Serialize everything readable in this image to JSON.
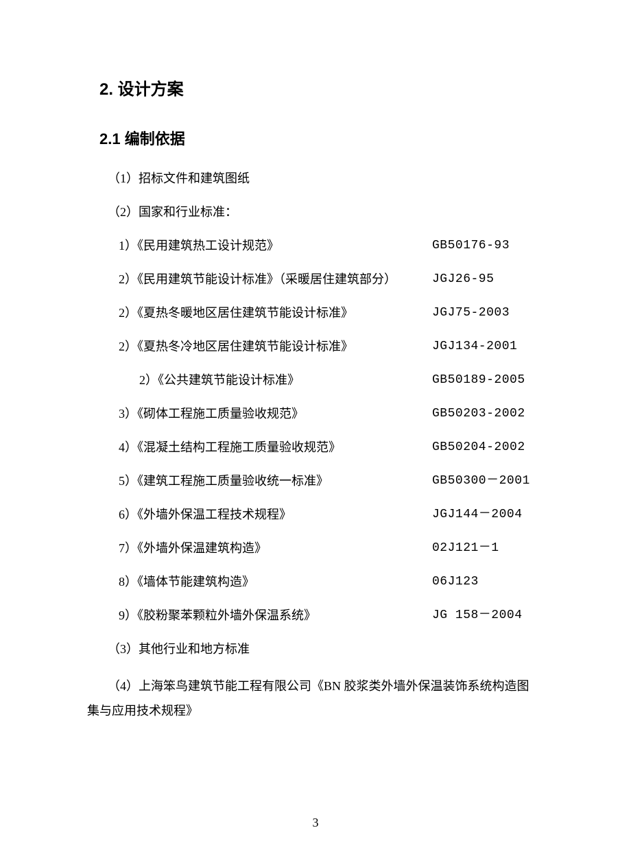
{
  "heading1": "2. 设计方案",
  "heading2": "2.1 编制依据",
  "item1": "（1）招标文件和建筑图纸",
  "item2": "（2）国家和行业标准：",
  "standards": [
    {
      "title": "1）《民用建筑热工设计规范》",
      "code": "GB50176-93",
      "indent": 1
    },
    {
      "title": "2）《民用建筑节能设计标准》（采暖居住建筑部分）",
      "code": "JGJ26-95",
      "indent": 1
    },
    {
      "title": "2）《夏热冬暖地区居住建筑节能设计标准》",
      "code": "JGJ75-2003",
      "indent": 1
    },
    {
      "title": "2）《夏热冬冷地区居住建筑节能设计标准》",
      "code": "JGJ134-2001",
      "indent": 1
    },
    {
      "title": "2）《公共建筑节能设计标准》",
      "code": "GB50189-2005",
      "indent": 2
    },
    {
      "title": "3）《砌体工程施工质量验收规范》",
      "code": "GB50203-2002",
      "indent": 1
    },
    {
      "title": "4）《混凝土结构工程施工质量验收规范》",
      "code": "GB50204-2002",
      "indent": 1
    },
    {
      "title": "5）《建筑工程施工质量验收统一标准》",
      "code": "GB50300－2001",
      "indent": 1
    },
    {
      "title": "6）《外墙外保温工程技术规程》",
      "code": "JGJ144－2004",
      "indent": 1
    },
    {
      "title": "7）《外墙外保温建筑构造》",
      "code": "02J121－1",
      "indent": 1
    },
    {
      "title": "8）《墙体节能建筑构造》",
      "code": "06J123",
      "indent": 1
    },
    {
      "title": "9）《胶粉聚苯颗粒外墙外保温系统》",
      "code": "JG 158－2004",
      "indent": 1
    }
  ],
  "item3": "（3）其他行业和地方标准",
  "item4_line1": "（4）上海笨鸟建筑节能工程有限公司《BN 胶浆类外墙外保温装饰系统构造图",
  "item4_line2": "集与应用技术规程》",
  "pageNumber": "3"
}
